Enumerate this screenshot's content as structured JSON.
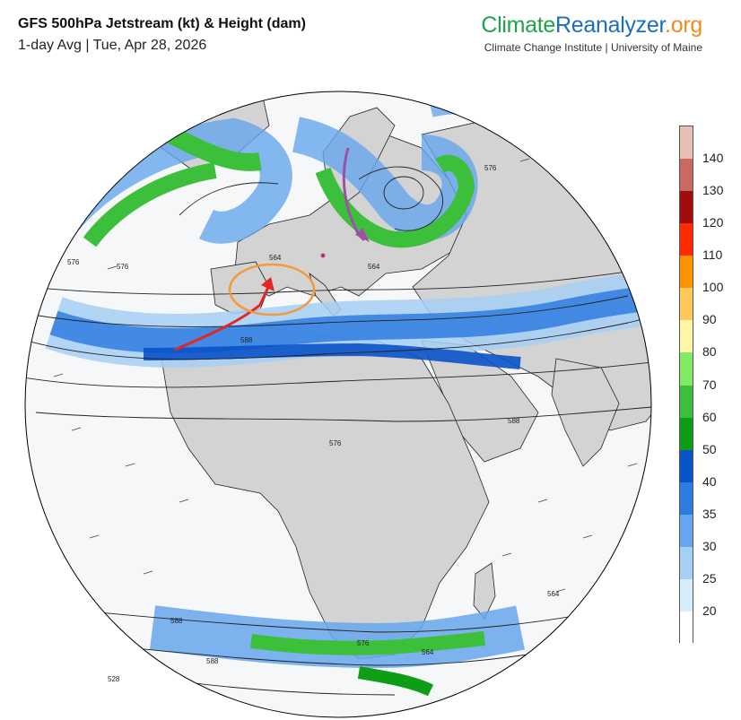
{
  "title": "GFS 500hPa Jetstream (kt) & Height (dam)",
  "subtitle": "1-day Avg | Tue, Apr 28, 2026",
  "brand": {
    "part1": "Climate",
    "part2": "Reanalyzer",
    "part3": ".org",
    "tagline": "Climate Change Institute | University of Maine",
    "color1": "#21a24b",
    "color2": "#1c6fb5",
    "color3": "#f08a1c"
  },
  "legend": {
    "labels": [
      "140",
      "130",
      "120",
      "110",
      "100",
      "90",
      "80",
      "70",
      "60",
      "50",
      "40",
      "35",
      "30",
      "25",
      "20"
    ],
    "colors": [
      "#e6c0b4",
      "#c96a62",
      "#a10c0c",
      "#ff2a00",
      "#ff9200",
      "#ffc85a",
      "#fff6a6",
      "#80ea62",
      "#3cc03c",
      "#0e9e16",
      "#0a52c8",
      "#2e7ce0",
      "#66a6ec",
      "#a6cff4",
      "#d6eefb",
      "#ffffff"
    ]
  },
  "contour_labels": [
    "564",
    "576",
    "588",
    "576",
    "588",
    "564",
    "576",
    "588",
    "588",
    "564",
    "576",
    "576",
    "564",
    "528"
  ],
  "annotations": {
    "red_arrow_color": "#e32626",
    "orange_circle_color": "#f39a3c",
    "purple_arrow_color": "#a04fa6"
  }
}
